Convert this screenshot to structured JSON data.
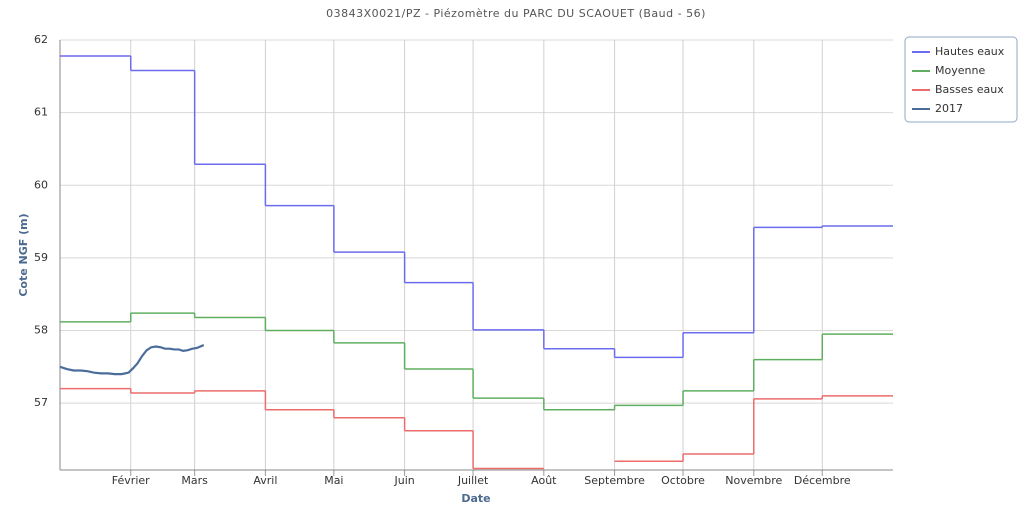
{
  "chart_data": {
    "type": "line",
    "title": "03843X0021/PZ - Piézomètre du PARC DU SCAOUET (Baud - 56)",
    "xlabel": "Date",
    "ylabel": "Cote NGF (m)",
    "xlim": [
      0,
      365
    ],
    "xticks": [
      {
        "value": 31,
        "label": "Février"
      },
      {
        "value": 59,
        "label": "Mars"
      },
      {
        "value": 90,
        "label": "Avril"
      },
      {
        "value": 120,
        "label": "Mai"
      },
      {
        "value": 151,
        "label": "Juin"
      },
      {
        "value": 181,
        "label": "Juillet"
      },
      {
        "value": 212,
        "label": "Août"
      },
      {
        "value": 243,
        "label": "Septembre"
      },
      {
        "value": 273,
        "label": "Octobre"
      },
      {
        "value": 304,
        "label": "Novembre"
      },
      {
        "value": 334,
        "label": "Décembre"
      }
    ],
    "ylim": [
      56.08,
      62
    ],
    "yticks": [
      57,
      58,
      59,
      60,
      61,
      62
    ],
    "grid": true,
    "legend": "top-right",
    "series": [
      {
        "name": "Hautes eaux",
        "color": "#6b6bef",
        "step": true,
        "x": [
          0,
          31,
          59,
          90,
          120,
          151,
          181,
          212,
          243,
          273,
          304,
          334
        ],
        "values": [
          61.78,
          61.58,
          60.29,
          59.72,
          59.08,
          58.66,
          58.01,
          57.75,
          57.63,
          57.97,
          59.42,
          59.44
        ]
      },
      {
        "name": "Moyenne",
        "color": "#5fae5f",
        "step": true,
        "x": [
          0,
          31,
          59,
          90,
          120,
          151,
          181,
          212,
          243,
          273,
          304,
          334
        ],
        "values": [
          58.12,
          58.24,
          58.18,
          58.0,
          57.83,
          57.47,
          57.07,
          56.91,
          56.97,
          57.17,
          57.6,
          57.95
        ]
      },
      {
        "name": "Basses eaux",
        "color": "#ec6b6b",
        "step": true,
        "x": [
          0,
          31,
          59,
          90,
          120,
          151,
          181,
          212,
          243,
          273,
          304,
          334
        ],
        "values": [
          57.2,
          57.14,
          57.17,
          56.91,
          56.8,
          56.62,
          56.1,
          null,
          56.2,
          56.3,
          57.06,
          57.1
        ]
      },
      {
        "name": "2017",
        "color": "#4a6d9c",
        "step": false,
        "x": [
          0,
          3,
          6,
          9,
          12,
          15,
          18,
          21,
          24,
          27,
          30,
          32,
          34,
          36,
          38,
          40,
          42,
          44,
          46,
          48,
          50,
          52,
          54,
          56,
          58,
          60,
          63
        ],
        "values": [
          57.5,
          57.47,
          57.45,
          57.45,
          57.44,
          57.42,
          57.41,
          57.41,
          57.4,
          57.4,
          57.42,
          57.48,
          57.55,
          57.65,
          57.73,
          57.77,
          57.78,
          57.77,
          57.75,
          57.75,
          57.74,
          57.74,
          57.72,
          57.73,
          57.75,
          57.76,
          57.8
        ]
      }
    ]
  }
}
